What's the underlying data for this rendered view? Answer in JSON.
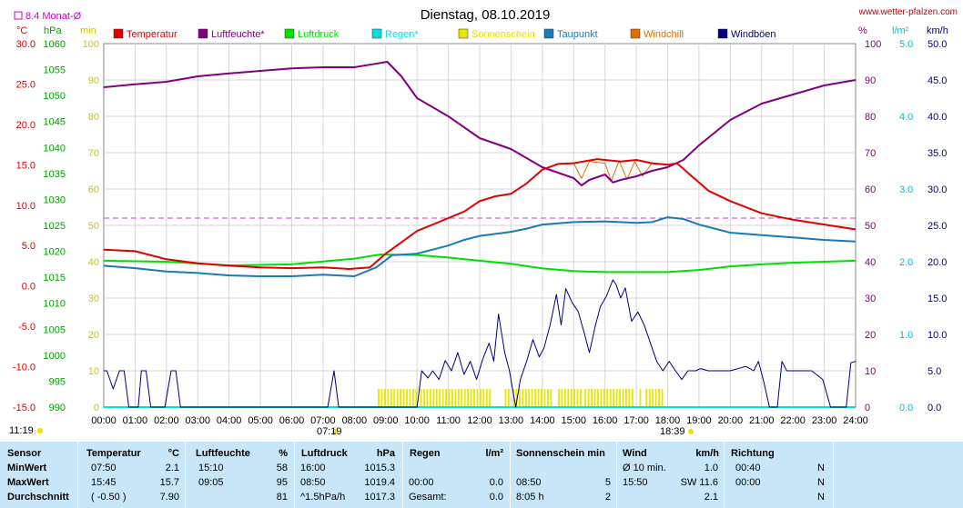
{
  "header": {
    "title": "Dienstag, 08.10.2019",
    "site": "www.wetter-pfalzen.com",
    "month_avg_label": "8.4 Monat-Ø",
    "unit_c": "°C",
    "unit_hpa": "hPa",
    "unit_min": "min",
    "unit_pct": "%",
    "unit_lm2": "l/m²",
    "unit_kmh": "km/h",
    "sunrise": "07:19",
    "sunset": "18:39",
    "left_time": "11:19"
  },
  "legend": [
    {
      "label": "Temperatur",
      "color": "#e00000"
    },
    {
      "label": "Luftfeuchte*",
      "color": "#800080"
    },
    {
      "label": "Luftdruck",
      "color": "#00e000"
    },
    {
      "label": "Regen*",
      "color": "#00e0e0"
    },
    {
      "label": "Sonnenschein",
      "color": "#e6e600"
    },
    {
      "label": "Taupunkt",
      "color": "#1a7ab8"
    },
    {
      "label": "Windchill",
      "color": "#e07000"
    },
    {
      "label": "Windböen",
      "color": "#000080"
    }
  ],
  "chart_data": {
    "type": "line",
    "x_ticks": [
      "00:00",
      "01:00",
      "02:00",
      "03:00",
      "04:00",
      "05:00",
      "06:00",
      "07:00",
      "08:00",
      "09:00",
      "10:00",
      "11:00",
      "12:00",
      "13:00",
      "14:00",
      "15:00",
      "16:00",
      "17:00",
      "18:00",
      "19:00",
      "20:00",
      "21:00",
      "22:00",
      "23:00",
      "24:00"
    ],
    "grid": true,
    "month_avg_temperature": 8.4,
    "axes": {
      "temperature_c": {
        "range": [
          -15,
          30
        ],
        "ticks": [
          "30.0",
          "25.0",
          "20.0",
          "15.0",
          "10.0",
          "5.0",
          "0.0",
          "-5.0",
          "-10.0",
          "-15.0"
        ]
      },
      "pressure_hpa": {
        "range": [
          990,
          1060
        ],
        "ticks": [
          "1060",
          "1055",
          "1050",
          "1045",
          "1040",
          "1035",
          "1030",
          "1025",
          "1020",
          "1015",
          "1010",
          "1005",
          "1000",
          "995",
          "990"
        ]
      },
      "sun_min": {
        "range": [
          0,
          100
        ],
        "ticks": [
          "100",
          "90",
          "80",
          "70",
          "60",
          "50",
          "40",
          "30",
          "20",
          "10",
          "0"
        ]
      },
      "humidity_pct": {
        "range": [
          0,
          100
        ],
        "ticks": [
          "100",
          "90",
          "80",
          "70",
          "60",
          "50",
          "40",
          "30",
          "20",
          "10",
          "0"
        ]
      },
      "rain_lm2": {
        "range": [
          0,
          5
        ],
        "ticks": [
          "5.0",
          "4.0",
          "3.0",
          "2.0",
          "1.0",
          "0.0"
        ]
      },
      "wind_kmh": {
        "range": [
          0,
          50
        ],
        "ticks": [
          "50.0",
          "45.0",
          "40.0",
          "35.0",
          "30.0",
          "25.0",
          "20.0",
          "15.0",
          "10.0",
          "5.0",
          "0.0"
        ]
      }
    },
    "series": [
      {
        "name": "Temperatur",
        "unit": "°C",
        "points": [
          [
            0,
            4.5
          ],
          [
            1,
            4.3
          ],
          [
            2,
            3.3
          ],
          [
            3,
            2.8
          ],
          [
            4,
            2.5
          ],
          [
            5,
            2.3
          ],
          [
            6,
            2.2
          ],
          [
            7,
            2.3
          ],
          [
            7.83,
            2.1
          ],
          [
            8.5,
            2.3
          ],
          [
            9,
            4
          ],
          [
            10,
            6.8
          ],
          [
            11,
            8.4
          ],
          [
            11.5,
            9.2
          ],
          [
            12,
            10.5
          ],
          [
            12.5,
            11.1
          ],
          [
            13,
            11.4
          ],
          [
            13.5,
            12.7
          ],
          [
            14,
            14.4
          ],
          [
            14.5,
            15.1
          ],
          [
            15,
            15.2
          ],
          [
            15.75,
            15.7
          ],
          [
            16.5,
            15.4
          ],
          [
            17,
            15.6
          ],
          [
            17.5,
            15.2
          ],
          [
            18,
            15.0
          ],
          [
            18.3,
            15.2
          ],
          [
            18.8,
            13.5
          ],
          [
            19.3,
            11.8
          ],
          [
            20,
            10.5
          ],
          [
            21,
            9.0
          ],
          [
            22,
            8.2
          ],
          [
            23,
            7.6
          ],
          [
            24,
            7.0
          ]
        ]
      },
      {
        "name": "Windchill",
        "unit": "°C",
        "points": [
          [
            15,
            15.2
          ],
          [
            15.25,
            13.3
          ],
          [
            15.5,
            15.4
          ],
          [
            16,
            15.2
          ],
          [
            16.2,
            13.0
          ],
          [
            16.45,
            15.5
          ],
          [
            16.7,
            13.2
          ],
          [
            16.95,
            15.4
          ],
          [
            17.2,
            13.6
          ],
          [
            17.5,
            15.2
          ]
        ]
      },
      {
        "name": "Taupunkt",
        "unit": "°C",
        "points": [
          [
            0,
            2.5
          ],
          [
            1,
            2.2
          ],
          [
            2,
            1.8
          ],
          [
            3,
            1.6
          ],
          [
            4,
            1.3
          ],
          [
            5,
            1.2
          ],
          [
            6,
            1.2
          ],
          [
            7,
            1.4
          ],
          [
            8,
            1.2
          ],
          [
            8.7,
            2.3
          ],
          [
            9.2,
            3.8
          ],
          [
            10,
            4.0
          ],
          [
            11,
            5.0
          ],
          [
            11.5,
            5.7
          ],
          [
            12,
            6.2
          ],
          [
            13,
            6.7
          ],
          [
            13.5,
            7.1
          ],
          [
            14,
            7.6
          ],
          [
            15,
            7.9
          ],
          [
            16,
            8.0
          ],
          [
            17,
            7.8
          ],
          [
            17.5,
            7.9
          ],
          [
            18,
            8.5
          ],
          [
            18.5,
            8.3
          ],
          [
            19,
            7.6
          ],
          [
            20,
            6.6
          ],
          [
            21,
            6.3
          ],
          [
            22,
            6.0
          ],
          [
            23,
            5.7
          ],
          [
            24,
            5.5
          ]
        ]
      },
      {
        "name": "Luftfeuchte*",
        "unit": "%",
        "points": [
          [
            0,
            88
          ],
          [
            1,
            88.8
          ],
          [
            2,
            89.5
          ],
          [
            3,
            91
          ],
          [
            4,
            91.8
          ],
          [
            5,
            92.5
          ],
          [
            6,
            93.2
          ],
          [
            7,
            93.5
          ],
          [
            8,
            93.5
          ],
          [
            8.5,
            94.2
          ],
          [
            9.05,
            95
          ],
          [
            9.5,
            91
          ],
          [
            10,
            85
          ],
          [
            11,
            80
          ],
          [
            12,
            74
          ],
          [
            13,
            71
          ],
          [
            14,
            66
          ],
          [
            15,
            63
          ],
          [
            15.25,
            61
          ],
          [
            15.5,
            62.5
          ],
          [
            16,
            64
          ],
          [
            16.25,
            61.8
          ],
          [
            16.5,
            62.5
          ],
          [
            17,
            63.5
          ],
          [
            17.5,
            65
          ],
          [
            18,
            66
          ],
          [
            18.5,
            68
          ],
          [
            19,
            72
          ],
          [
            20,
            79
          ],
          [
            21,
            83.5
          ],
          [
            22,
            86
          ],
          [
            23,
            88.5
          ],
          [
            24,
            90
          ]
        ]
      },
      {
        "name": "Luftdruck",
        "unit": "hPa",
        "points": [
          [
            0,
            1018.2
          ],
          [
            2,
            1018
          ],
          [
            4,
            1017.3
          ],
          [
            6,
            1017.5
          ],
          [
            8,
            1018.6
          ],
          [
            8.83,
            1019.4
          ],
          [
            10,
            1019.3
          ],
          [
            11,
            1018.8
          ],
          [
            12,
            1018.2
          ],
          [
            13,
            1017.6
          ],
          [
            14,
            1016.7
          ],
          [
            15,
            1016.2
          ],
          [
            16,
            1016.0
          ],
          [
            17,
            1016.0
          ],
          [
            18,
            1016.0
          ],
          [
            19,
            1016.4
          ],
          [
            20,
            1017.1
          ],
          [
            21,
            1017.5
          ],
          [
            22,
            1017.8
          ],
          [
            23,
            1018.0
          ],
          [
            24,
            1018.2
          ]
        ]
      },
      {
        "name": "Regen*",
        "unit": "l/m²",
        "points": [
          [
            0,
            0
          ],
          [
            24,
            0
          ]
        ]
      },
      {
        "name": "Windböen",
        "unit": "km/h",
        "points": [
          [
            0,
            5
          ],
          [
            0.1,
            5
          ],
          [
            0.3,
            2.5
          ],
          [
            0.5,
            5
          ],
          [
            0.65,
            5
          ],
          [
            0.8,
            0
          ],
          [
            1.1,
            0
          ],
          [
            1.2,
            5
          ],
          [
            1.35,
            5
          ],
          [
            1.5,
            0
          ],
          [
            1.95,
            0
          ],
          [
            2.15,
            5
          ],
          [
            2.3,
            5
          ],
          [
            2.45,
            0
          ],
          [
            7.15,
            0
          ],
          [
            7.25,
            2.5
          ],
          [
            7.35,
            5
          ],
          [
            7.5,
            0
          ],
          [
            10,
            0
          ],
          [
            10.15,
            5
          ],
          [
            10.35,
            4
          ],
          [
            10.5,
            5
          ],
          [
            10.7,
            3.8
          ],
          [
            10.9,
            6.4
          ],
          [
            11.1,
            5
          ],
          [
            11.3,
            7.5
          ],
          [
            11.5,
            4.5
          ],
          [
            11.7,
            6.3
          ],
          [
            11.9,
            3.8
          ],
          [
            12.1,
            6.6
          ],
          [
            12.3,
            8.8
          ],
          [
            12.45,
            6.3
          ],
          [
            12.6,
            12.8
          ],
          [
            12.8,
            7.5
          ],
          [
            12.95,
            5
          ],
          [
            13.15,
            0
          ],
          [
            13.3,
            3.8
          ],
          [
            13.5,
            6.3
          ],
          [
            13.7,
            9.3
          ],
          [
            13.9,
            6.9
          ],
          [
            14.05,
            8.1
          ],
          [
            14.25,
            11.3
          ],
          [
            14.45,
            15.5
          ],
          [
            14.6,
            11.3
          ],
          [
            14.75,
            16.3
          ],
          [
            14.95,
            14.4
          ],
          [
            15.15,
            13.1
          ],
          [
            15.35,
            10
          ],
          [
            15.5,
            7.5
          ],
          [
            15.7,
            11.3
          ],
          [
            15.85,
            13.8
          ],
          [
            16.05,
            15.3
          ],
          [
            16.25,
            17.5
          ],
          [
            16.35,
            16.9
          ],
          [
            16.5,
            15
          ],
          [
            16.65,
            16.4
          ],
          [
            16.85,
            11.8
          ],
          [
            17.05,
            13.1
          ],
          [
            17.25,
            11.3
          ],
          [
            17.45,
            8.8
          ],
          [
            17.65,
            6.3
          ],
          [
            17.85,
            5
          ],
          [
            18.05,
            6.3
          ],
          [
            18.25,
            5
          ],
          [
            18.45,
            3.8
          ],
          [
            18.65,
            5
          ],
          [
            18.9,
            5
          ],
          [
            19.05,
            5.3
          ],
          [
            19.3,
            5
          ],
          [
            20,
            5
          ],
          [
            20.5,
            5.6
          ],
          [
            20.75,
            5
          ],
          [
            20.9,
            6.3
          ],
          [
            21.05,
            3.8
          ],
          [
            21.25,
            0
          ],
          [
            21.5,
            0
          ],
          [
            21.65,
            6.3
          ],
          [
            21.8,
            5
          ],
          [
            22.3,
            5
          ],
          [
            22.6,
            5
          ],
          [
            22.95,
            3.8
          ],
          [
            23.2,
            0
          ],
          [
            23.7,
            0
          ],
          [
            23.85,
            6.1
          ],
          [
            24,
            6.3
          ]
        ]
      }
    ],
    "sunshine_periods": [
      [
        8.75,
        9.95
      ],
      [
        10.1,
        12.3
      ],
      [
        12.8,
        12.9
      ],
      [
        13.05,
        14.3
      ],
      [
        14.5,
        15.2
      ],
      [
        15.35,
        16.9
      ],
      [
        17.1,
        17.2
      ],
      [
        17.3,
        17.9
      ]
    ]
  },
  "stats": {
    "headers": [
      "Sensor",
      "Temperatur",
      "°C",
      "Luftfeuchte",
      "%",
      "Luftdruck",
      "hPa",
      "Regen",
      "l/m²",
      "Sonnenschein min",
      "Wind",
      "km/h",
      "Richtung"
    ],
    "rows": [
      {
        "label": "MinWert",
        "t_time": "07:50",
        "t_val": "2.1",
        "h_time": "15:10",
        "h_val": "58",
        "p_time": "16:00",
        "p_val": "1015.3",
        "r_time": "",
        "r_val": "",
        "s_time": "",
        "s_val": "",
        "w_time": "Ø 10 min.",
        "w_val": "1.0",
        "d_time": "00:40",
        "d_val": "N"
      },
      {
        "label": "MaxWert",
        "t_time": "15:45",
        "t_val": "15.7",
        "h_time": "09:05",
        "h_val": "95",
        "p_time": "08:50",
        "p_val": "1019.4",
        "r_time": "00:00",
        "r_val": "0.0",
        "s_time": "08:50",
        "s_val": "5",
        "w_time": "15:50",
        "w_val": "SW 11.6",
        "d_time": "00:00",
        "d_val": "N"
      },
      {
        "label": "Durchschnitt",
        "t_time": "( -0.50 )",
        "t_val": "7.90",
        "h_time": "",
        "h_val": "81",
        "p_time": "^1.5hPa/h",
        "p_val": "1017.3",
        "r_time": "Gesamt:",
        "r_val": "0.0",
        "s_time": "8:05 h",
        "s_val": "2",
        "w_time": "",
        "w_val": "2.1",
        "d_time": "",
        "d_val": "N"
      }
    ]
  }
}
